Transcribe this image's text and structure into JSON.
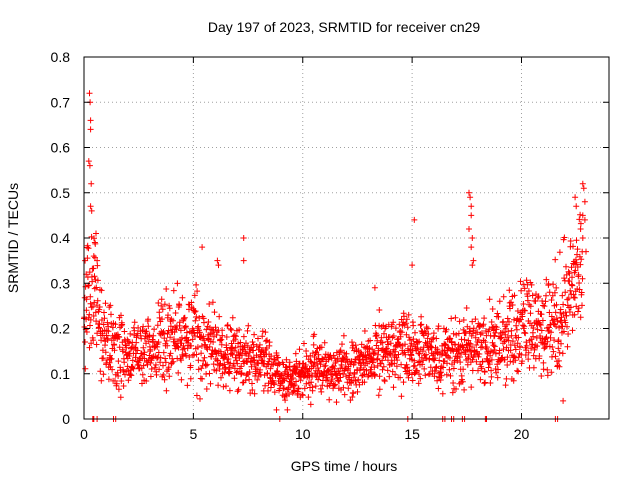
{
  "chart_data": {
    "type": "scatter",
    "title": "Day 197 of 2023, SRMTID for receiver cn29",
    "xlabel": "GPS time / hours",
    "ylabel": "SRMTID / TECUs",
    "xlim": [
      0,
      24
    ],
    "ylim": [
      0,
      0.8
    ],
    "x_ticks": [
      0,
      5,
      10,
      15,
      20
    ],
    "x_tick_labels": [
      "0",
      "5",
      "10",
      "15",
      "20"
    ],
    "y_ticks": [
      0,
      0.1,
      0.2,
      0.3,
      0.4,
      0.5,
      0.6,
      0.7,
      0.8
    ],
    "y_tick_labels": [
      "0",
      "0.1",
      "0.2",
      "0.3",
      "0.4",
      "0.5",
      "0.6",
      "0.7",
      "0.8"
    ],
    "grid": true,
    "marker": "plus",
    "color": "#ff0000",
    "series": [
      {
        "name": "SRMTID",
        "profile": [
          [
            0.0,
            0.21
          ],
          [
            0.2,
            0.3
          ],
          [
            0.4,
            0.28
          ],
          [
            0.7,
            0.22
          ],
          [
            1.0,
            0.18
          ],
          [
            1.5,
            0.15
          ],
          [
            2.0,
            0.14
          ],
          [
            2.5,
            0.15
          ],
          [
            3.0,
            0.15
          ],
          [
            3.5,
            0.17
          ],
          [
            4.0,
            0.17
          ],
          [
            4.5,
            0.18
          ],
          [
            5.0,
            0.2
          ],
          [
            5.5,
            0.16
          ],
          [
            6.0,
            0.15
          ],
          [
            6.5,
            0.14
          ],
          [
            7.0,
            0.14
          ],
          [
            7.5,
            0.13
          ],
          [
            8.0,
            0.13
          ],
          [
            8.5,
            0.11
          ],
          [
            9.0,
            0.09
          ],
          [
            9.5,
            0.09
          ],
          [
            10.0,
            0.1
          ],
          [
            10.5,
            0.11
          ],
          [
            11.0,
            0.11
          ],
          [
            11.5,
            0.1
          ],
          [
            12.0,
            0.11
          ],
          [
            12.5,
            0.12
          ],
          [
            13.0,
            0.13
          ],
          [
            13.5,
            0.14
          ],
          [
            14.0,
            0.15
          ],
          [
            14.5,
            0.15
          ],
          [
            15.0,
            0.15
          ],
          [
            15.5,
            0.15
          ],
          [
            16.0,
            0.14
          ],
          [
            16.5,
            0.14
          ],
          [
            17.0,
            0.14
          ],
          [
            17.5,
            0.16
          ],
          [
            18.0,
            0.15
          ],
          [
            18.5,
            0.16
          ],
          [
            19.0,
            0.17
          ],
          [
            19.5,
            0.18
          ],
          [
            20.0,
            0.19
          ],
          [
            20.5,
            0.2
          ],
          [
            21.0,
            0.2
          ],
          [
            21.5,
            0.22
          ],
          [
            22.0,
            0.26
          ],
          [
            22.5,
            0.31
          ],
          [
            22.8,
            0.33
          ]
        ],
        "spread_fraction": 0.45,
        "sample_interval_hours": 0.012,
        "outliers": [
          [
            0.25,
            0.72
          ],
          [
            0.28,
            0.7
          ],
          [
            0.3,
            0.66
          ],
          [
            0.3,
            0.64
          ],
          [
            0.22,
            0.57
          ],
          [
            0.27,
            0.56
          ],
          [
            0.33,
            0.52
          ],
          [
            0.3,
            0.47
          ],
          [
            0.35,
            0.46
          ],
          [
            0.55,
            0.41
          ],
          [
            0.5,
            0.39
          ],
          [
            0.45,
            0.36
          ],
          [
            0.6,
            0.35
          ],
          [
            5.4,
            0.38
          ],
          [
            7.3,
            0.4
          ],
          [
            7.3,
            0.35
          ],
          [
            6.1,
            0.35
          ],
          [
            6.15,
            0.34
          ],
          [
            15.1,
            0.44
          ],
          [
            15.0,
            0.34
          ],
          [
            13.3,
            0.29
          ],
          [
            17.6,
            0.5
          ],
          [
            17.65,
            0.49
          ],
          [
            17.7,
            0.47
          ],
          [
            17.7,
            0.45
          ],
          [
            17.6,
            0.42
          ],
          [
            17.75,
            0.4
          ],
          [
            17.7,
            0.38
          ],
          [
            17.8,
            0.35
          ],
          [
            17.75,
            0.34
          ],
          [
            22.45,
            0.49
          ],
          [
            22.5,
            0.47
          ],
          [
            22.8,
            0.52
          ],
          [
            22.85,
            0.51
          ],
          [
            22.9,
            0.48
          ],
          [
            22.8,
            0.45
          ],
          [
            22.9,
            0.44
          ],
          [
            22.7,
            0.42
          ],
          [
            22.8,
            0.4
          ],
          [
            22.95,
            0.37
          ],
          [
            0.05,
            0.35
          ],
          [
            0.1,
            0.32
          ],
          [
            21.9,
            0.04
          ],
          [
            8.8,
            0.02
          ],
          [
            9.3,
            0.02
          ]
        ],
        "zero_points": [
          0.4,
          0.45,
          0.6,
          1.35,
          1.45,
          8.95,
          14.8,
          16.4,
          16.5,
          16.8,
          16.9,
          17.3,
          17.4,
          18.35,
          18.4,
          21.55,
          21.65
        ]
      }
    ]
  }
}
